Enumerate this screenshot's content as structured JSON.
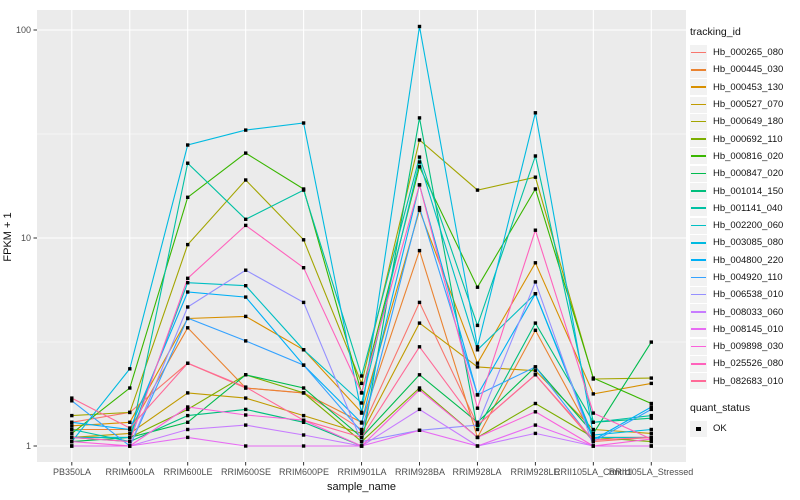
{
  "figure": {
    "y_axis_title": "FPKM + 1",
    "x_axis_title": "sample_name"
  },
  "legend": {
    "tracking_title": "tracking_id",
    "quant_title": "quant_status",
    "quant_items": [
      {
        "label": "OK",
        "marker": "black-square"
      }
    ]
  },
  "colors": {
    "panel_bg": "#ebebeb",
    "grid": "#ffffff",
    "tick_mark": "#333333",
    "axis_text": "#4d4d4d",
    "legend_key_bg": "#f2f2f2",
    "marker": "#000000"
  },
  "chart_data": {
    "type": "line",
    "title": "",
    "xlabel": "sample_name",
    "ylabel": "FPKM + 1",
    "y_scale": "log10",
    "ylim": [
      1,
      110
    ],
    "y_ticks": [
      1,
      10,
      100
    ],
    "y_tick_labels": [
      "1",
      "10",
      "100"
    ],
    "y_minor_ticks": [
      3.162,
      31.62
    ],
    "grid": "on",
    "legend_position": "right",
    "point_marker": {
      "shape": "square",
      "color": "#000000",
      "legend_label": "OK"
    },
    "categories": [
      "PB350LA",
      "RRIM600LA",
      "RRIM600LE",
      "RRIM600SE",
      "RRIM600PE",
      "RRIM901LA",
      "RRIM928BA",
      "RRIM928LA",
      "RRIM928LE",
      "RRII105LA_Control",
      "RRII105LA_Stressed"
    ],
    "series": [
      {
        "name": "Hb_000265_080",
        "color": "#F8766D",
        "values": [
          1.3,
          1.45,
          2.5,
          1.9,
          1.8,
          1.2,
          4.9,
          1.26,
          2.2,
          1.05,
          1.1
        ]
      },
      {
        "name": "Hb_000445_030",
        "color": "#EA8331",
        "values": [
          1.2,
          1.2,
          3.7,
          1.9,
          1.8,
          1.3,
          8.7,
          1.1,
          3.6,
          1.1,
          1.1
        ]
      },
      {
        "name": "Hb_000453_130",
        "color": "#D89000",
        "values": [
          1.25,
          1.3,
          4.1,
          4.2,
          2.9,
          1.45,
          13.6,
          2.5,
          7.6,
          1.78,
          2.0
        ]
      },
      {
        "name": "Hb_000527_070",
        "color": "#C09B00",
        "values": [
          1.1,
          1.15,
          1.8,
          1.7,
          1.4,
          1.15,
          3.9,
          2.4,
          2.3,
          1.2,
          1.15
        ]
      },
      {
        "name": "Hb_000649_180",
        "color": "#A3A500",
        "values": [
          1.4,
          1.45,
          9.3,
          19.0,
          9.8,
          2.0,
          29.6,
          17.0,
          19.6,
          2.1,
          2.12
        ]
      },
      {
        "name": "Hb_000692_110",
        "color": "#7CAE00",
        "values": [
          1.1,
          1.1,
          1.5,
          2.2,
          1.8,
          1.05,
          1.9,
          1.1,
          1.6,
          1.1,
          1.05
        ]
      },
      {
        "name": "Hb_000816_020",
        "color": "#39B600",
        "values": [
          1.15,
          1.9,
          15.7,
          25.6,
          17.2,
          1.8,
          22.0,
          5.8,
          17.2,
          2.12,
          1.6
        ]
      },
      {
        "name": "Hb_000847_020",
        "color": "#00BB4E",
        "values": [
          1.05,
          1.1,
          1.3,
          2.2,
          1.9,
          1.1,
          2.2,
          1.3,
          2.4,
          1.15,
          3.16
        ]
      },
      {
        "name": "Hb_001014_150",
        "color": "#00BF7D",
        "values": [
          1.1,
          1.05,
          1.4,
          1.5,
          1.3,
          1.0,
          37.8,
          1.2,
          3.9,
          1.3,
          1.36
        ]
      },
      {
        "name": "Hb_001141_040",
        "color": "#00C1A3",
        "values": [
          1.2,
          1.05,
          22.9,
          12.3,
          17.0,
          2.17,
          24.5,
          3.8,
          24.8,
          1.3,
          1.4
        ]
      },
      {
        "name": "Hb_002200_060",
        "color": "#00BFC4",
        "values": [
          1.1,
          1.1,
          6.1,
          5.9,
          2.9,
          1.61,
          23.2,
          2.9,
          5.4,
          1.1,
          1.1
        ]
      },
      {
        "name": "Hb_003085_080",
        "color": "#00BAE0",
        "values": [
          1.05,
          2.35,
          28.0,
          33.0,
          35.7,
          1.44,
          104.0,
          3.0,
          40.0,
          1.13,
          1.2
        ]
      },
      {
        "name": "Hb_004800_220",
        "color": "#00B0F6",
        "values": [
          1.3,
          1.2,
          5.5,
          5.2,
          2.45,
          1.29,
          18.0,
          1.76,
          5.4,
          1.07,
          1.54
        ]
      },
      {
        "name": "Hb_004920_110",
        "color": "#35A2FF",
        "values": [
          1.65,
          1.0,
          4.12,
          3.2,
          2.45,
          1.17,
          14.0,
          1.76,
          2.4,
          1.05,
          1.5
        ]
      },
      {
        "name": "Hb_006538_010",
        "color": "#9590FF",
        "values": [
          1.0,
          1.0,
          4.66,
          7.0,
          4.9,
          1.05,
          1.19,
          1.26,
          6.15,
          1.0,
          1.0
        ]
      },
      {
        "name": "Hb_008033_060",
        "color": "#C77CFF",
        "values": [
          1.0,
          1.0,
          1.2,
          1.26,
          1.13,
          1.0,
          1.5,
          1.0,
          1.15,
          1.0,
          1.0
        ]
      },
      {
        "name": "Hb_008145_010",
        "color": "#E76BF3",
        "values": [
          1.0,
          1.0,
          1.1,
          1.0,
          1.0,
          1.0,
          1.19,
          1.0,
          1.26,
          1.0,
          1.0
        ]
      },
      {
        "name": "Hb_009898_030",
        "color": "#FA62DB",
        "values": [
          1.05,
          1.0,
          1.54,
          1.41,
          1.33,
          1.0,
          1.86,
          1.1,
          1.46,
          1.0,
          1.08
        ]
      },
      {
        "name": "Hb_025526_080",
        "color": "#FF62BC",
        "values": [
          1.1,
          1.05,
          6.4,
          11.5,
          7.2,
          1.8,
          18.0,
          1.52,
          10.9,
          1.44,
          1.08
        ]
      },
      {
        "name": "Hb_082683_010",
        "color": "#FF6A98",
        "values": [
          1.7,
          1.22,
          2.5,
          1.92,
          1.33,
          1.1,
          3.0,
          1.26,
          2.2,
          1.07,
          1.1
        ]
      }
    ]
  }
}
